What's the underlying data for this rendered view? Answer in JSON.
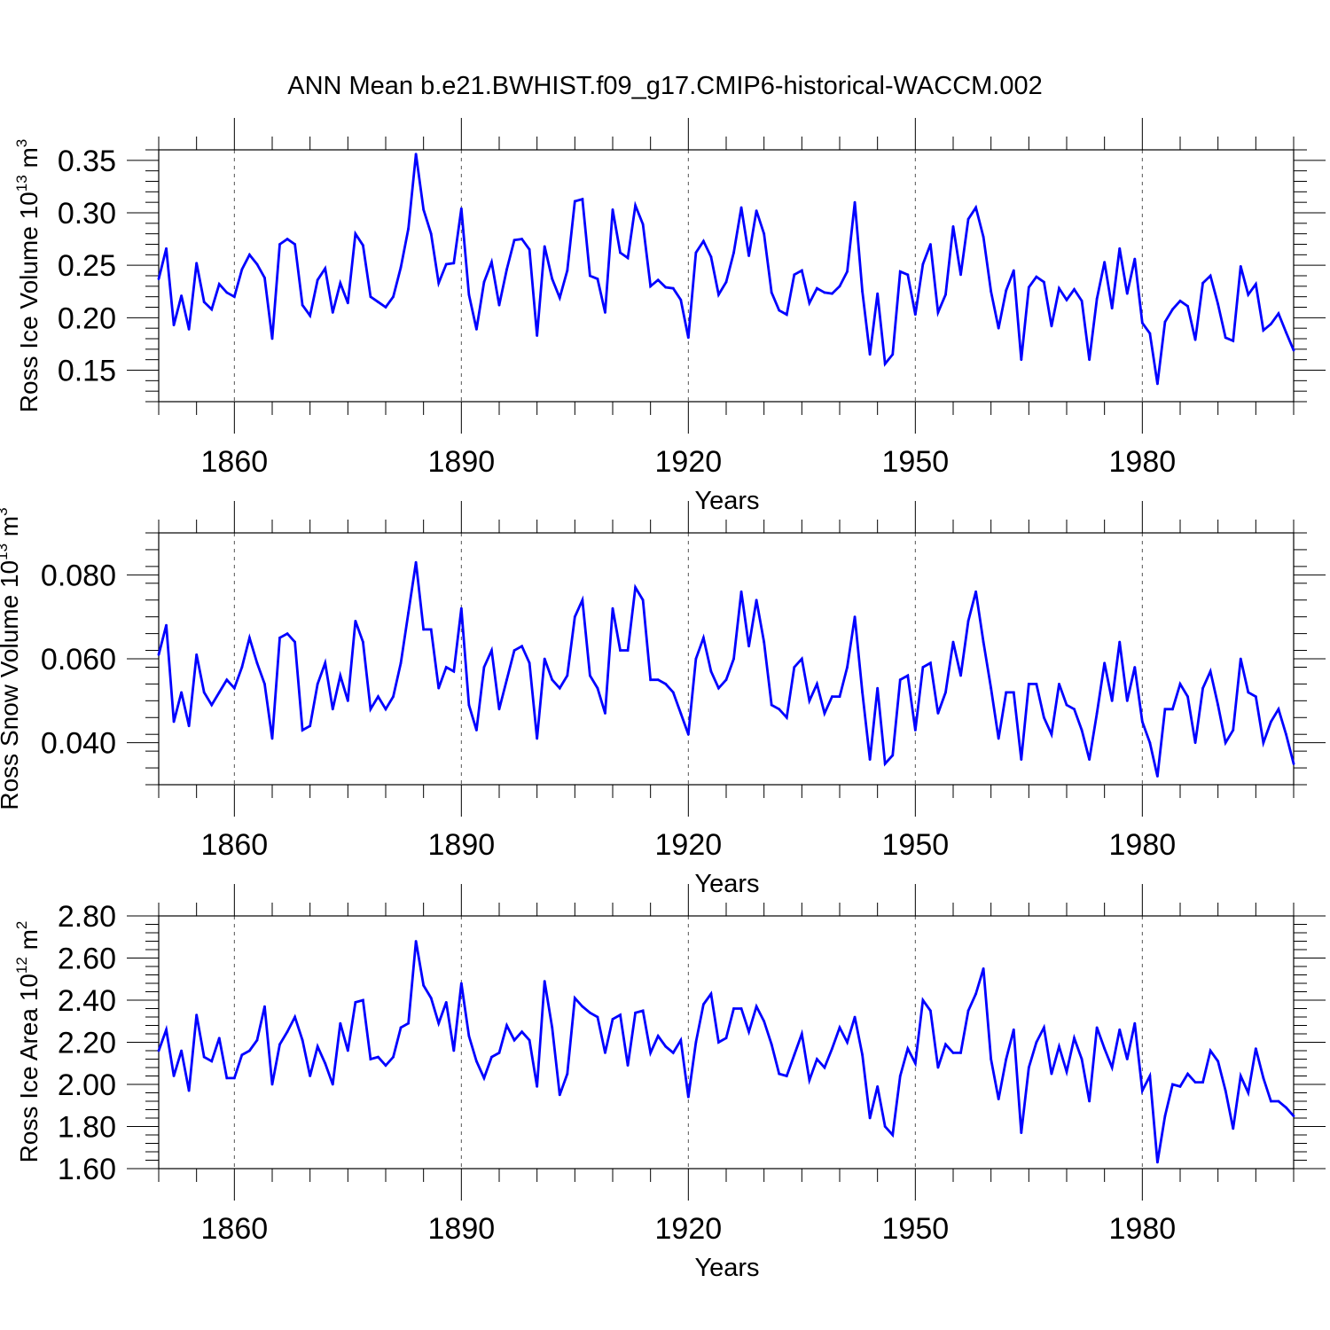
{
  "title": "ANN Mean b.e21.BWHIST.f09_g17.CMIP6-historical-WACCM.002",
  "colors": {
    "series": "#0000ff",
    "axis": "#000000",
    "grid": "#555555"
  },
  "chart_data": [
    {
      "type": "line",
      "ylabel": "Ross Ice Volume",
      "unit": {
        "scale": "10",
        "exp": "13",
        "sym": "m",
        "pow": "3"
      },
      "xlabel": "Years",
      "xlim": [
        1850,
        2000
      ],
      "ylim": [
        0.12,
        0.36
      ],
      "xticks": [
        1860,
        1890,
        1920,
        1950,
        1980
      ],
      "xtick_labels": [
        "1860",
        "1890",
        "1920",
        "1950",
        "1980"
      ],
      "yticks": [
        0.15,
        0.2,
        0.25,
        0.3,
        0.35
      ],
      "ytick_labels": [
        "0.15",
        "0.20",
        "0.25",
        "0.30",
        "0.35"
      ],
      "grid": "vertical dashed at x ticks",
      "x": [
        1850,
        1851,
        1852,
        1853,
        1854,
        1855,
        1856,
        1857,
        1858,
        1859,
        1860,
        1861,
        1862,
        1863,
        1864,
        1865,
        1866,
        1867,
        1868,
        1869,
        1870,
        1871,
        1872,
        1873,
        1874,
        1875,
        1876,
        1877,
        1878,
        1879,
        1880,
        1881,
        1882,
        1883,
        1884,
        1885,
        1886,
        1887,
        1888,
        1889,
        1890,
        1891,
        1892,
        1893,
        1894,
        1895,
        1896,
        1897,
        1898,
        1899,
        1900,
        1901,
        1902,
        1903,
        1904,
        1905,
        1906,
        1907,
        1908,
        1909,
        1910,
        1911,
        1912,
        1913,
        1914,
        1915,
        1916,
        1917,
        1918,
        1919,
        1920,
        1921,
        1922,
        1923,
        1924,
        1925,
        1926,
        1927,
        1928,
        1929,
        1930,
        1931,
        1932,
        1933,
        1934,
        1935,
        1936,
        1937,
        1938,
        1939,
        1940,
        1941,
        1942,
        1943,
        1944,
        1945,
        1946,
        1947,
        1948,
        1949,
        1950,
        1951,
        1952,
        1953,
        1954,
        1955,
        1956,
        1957,
        1958,
        1959,
        1960,
        1961,
        1962,
        1963,
        1964,
        1965,
        1966,
        1967,
        1968,
        1969,
        1970,
        1971,
        1972,
        1973,
        1974,
        1975,
        1976,
        1977,
        1978,
        1979,
        1980,
        1981,
        1982,
        1983,
        1984,
        1985,
        1986,
        1987,
        1988,
        1989,
        1990,
        1991,
        1992,
        1993,
        1994,
        1995,
        1996,
        1997,
        1998,
        1999,
        2000
      ],
      "series": [
        {
          "name": "Ross Ice Volume",
          "values": [
            0.237,
            0.266,
            0.193,
            0.221,
            0.189,
            0.252,
            0.215,
            0.208,
            0.232,
            0.224,
            0.22,
            0.246,
            0.26,
            0.251,
            0.238,
            0.18,
            0.27,
            0.275,
            0.27,
            0.212,
            0.202,
            0.236,
            0.247,
            0.205,
            0.233,
            0.214,
            0.28,
            0.269,
            0.22,
            0.215,
            0.21,
            0.22,
            0.248,
            0.285,
            0.356,
            0.303,
            0.28,
            0.233,
            0.251,
            0.252,
            0.304,
            0.222,
            0.189,
            0.234,
            0.253,
            0.212,
            0.246,
            0.274,
            0.275,
            0.265,
            0.183,
            0.268,
            0.237,
            0.219,
            0.245,
            0.311,
            0.313,
            0.24,
            0.237,
            0.205,
            0.303,
            0.262,
            0.257,
            0.307,
            0.289,
            0.23,
            0.236,
            0.229,
            0.228,
            0.217,
            0.181,
            0.262,
            0.273,
            0.258,
            0.222,
            0.234,
            0.262,
            0.305,
            0.259,
            0.302,
            0.28,
            0.224,
            0.207,
            0.203,
            0.241,
            0.245,
            0.214,
            0.228,
            0.224,
            0.223,
            0.23,
            0.244,
            0.31,
            0.225,
            0.165,
            0.223,
            0.156,
            0.165,
            0.244,
            0.241,
            0.203,
            0.251,
            0.27,
            0.205,
            0.222,
            0.287,
            0.241,
            0.294,
            0.305,
            0.277,
            0.225,
            0.19,
            0.226,
            0.245,
            0.16,
            0.229,
            0.239,
            0.234,
            0.192,
            0.228,
            0.217,
            0.227,
            0.216,
            0.16,
            0.218,
            0.253,
            0.209,
            0.266,
            0.223,
            0.256,
            0.195,
            0.185,
            0.137,
            0.196,
            0.208,
            0.216,
            0.211,
            0.179,
            0.233,
            0.24,
            0.213,
            0.181,
            0.178,
            0.249,
            0.222,
            0.232,
            0.188,
            0.194,
            0.204,
            0.186,
            0.169
          ]
        }
      ]
    },
    {
      "type": "line",
      "ylabel": "Ross Snow Volume",
      "unit": {
        "scale": "10",
        "exp": "13",
        "sym": "m",
        "pow": "3"
      },
      "xlabel": "Years",
      "xlim": [
        1850,
        2000
      ],
      "ylim": [
        0.03,
        0.09
      ],
      "xticks": [
        1860,
        1890,
        1920,
        1950,
        1980
      ],
      "xtick_labels": [
        "1860",
        "1890",
        "1920",
        "1950",
        "1980"
      ],
      "yticks": [
        0.04,
        0.06,
        0.08
      ],
      "ytick_labels": [
        "0.040",
        "0.060",
        "0.080"
      ],
      "grid": "vertical dashed at x ticks",
      "x": [
        1850,
        1851,
        1852,
        1853,
        1854,
        1855,
        1856,
        1857,
        1858,
        1859,
        1860,
        1861,
        1862,
        1863,
        1864,
        1865,
        1866,
        1867,
        1868,
        1869,
        1870,
        1871,
        1872,
        1873,
        1874,
        1875,
        1876,
        1877,
        1878,
        1879,
        1880,
        1881,
        1882,
        1883,
        1884,
        1885,
        1886,
        1887,
        1888,
        1889,
        1890,
        1891,
        1892,
        1893,
        1894,
        1895,
        1896,
        1897,
        1898,
        1899,
        1900,
        1901,
        1902,
        1903,
        1904,
        1905,
        1906,
        1907,
        1908,
        1909,
        1910,
        1911,
        1912,
        1913,
        1914,
        1915,
        1916,
        1917,
        1918,
        1919,
        1920,
        1921,
        1922,
        1923,
        1924,
        1925,
        1926,
        1927,
        1928,
        1929,
        1930,
        1931,
        1932,
        1933,
        1934,
        1935,
        1936,
        1937,
        1938,
        1939,
        1940,
        1941,
        1942,
        1943,
        1944,
        1945,
        1946,
        1947,
        1948,
        1949,
        1950,
        1951,
        1952,
        1953,
        1954,
        1955,
        1956,
        1957,
        1958,
        1959,
        1960,
        1961,
        1962,
        1963,
        1964,
        1965,
        1966,
        1967,
        1968,
        1969,
        1970,
        1971,
        1972,
        1973,
        1974,
        1975,
        1976,
        1977,
        1978,
        1979,
        1980,
        1981,
        1982,
        1983,
        1984,
        1985,
        1986,
        1987,
        1988,
        1989,
        1990,
        1991,
        1992,
        1993,
        1994,
        1995,
        1996,
        1997,
        1998,
        1999,
        2000
      ],
      "series": [
        {
          "name": "Ross Snow Volume",
          "values": [
            0.061,
            0.068,
            0.045,
            0.052,
            0.044,
            0.061,
            0.052,
            0.049,
            0.052,
            0.055,
            0.053,
            0.058,
            0.065,
            0.059,
            0.054,
            0.041,
            0.065,
            0.066,
            0.064,
            0.043,
            0.044,
            0.054,
            0.059,
            0.048,
            0.056,
            0.05,
            0.069,
            0.064,
            0.048,
            0.051,
            0.048,
            0.051,
            0.059,
            0.071,
            0.083,
            0.067,
            0.067,
            0.053,
            0.058,
            0.057,
            0.072,
            0.049,
            0.043,
            0.058,
            0.062,
            0.048,
            0.055,
            0.062,
            0.063,
            0.059,
            0.041,
            0.06,
            0.055,
            0.053,
            0.056,
            0.07,
            0.074,
            0.056,
            0.053,
            0.047,
            0.072,
            0.062,
            0.062,
            0.077,
            0.074,
            0.055,
            0.055,
            0.054,
            0.052,
            0.047,
            0.042,
            0.06,
            0.065,
            0.057,
            0.053,
            0.055,
            0.06,
            0.076,
            0.063,
            0.074,
            0.064,
            0.049,
            0.048,
            0.046,
            0.058,
            0.06,
            0.05,
            0.054,
            0.047,
            0.051,
            0.051,
            0.058,
            0.07,
            0.052,
            0.036,
            0.053,
            0.035,
            0.037,
            0.055,
            0.056,
            0.043,
            0.058,
            0.059,
            0.047,
            0.052,
            0.064,
            0.056,
            0.069,
            0.076,
            0.064,
            0.053,
            0.041,
            0.052,
            0.052,
            0.036,
            0.054,
            0.054,
            0.046,
            0.042,
            0.054,
            0.049,
            0.048,
            0.043,
            0.036,
            0.047,
            0.059,
            0.05,
            0.064,
            0.05,
            0.058,
            0.045,
            0.04,
            0.032,
            0.048,
            0.048,
            0.054,
            0.051,
            0.04,
            0.053,
            0.057,
            0.049,
            0.04,
            0.043,
            0.06,
            0.052,
            0.051,
            0.04,
            0.045,
            0.048,
            0.042,
            0.035
          ]
        }
      ]
    },
    {
      "type": "line",
      "ylabel": "Ross Ice Area",
      "unit": {
        "scale": "10",
        "exp": "12",
        "sym": "m",
        "pow": "2"
      },
      "xlabel": "Years",
      "xlim": [
        1850,
        2000
      ],
      "ylim": [
        1.6,
        2.8
      ],
      "xticks": [
        1860,
        1890,
        1920,
        1950,
        1980
      ],
      "xtick_labels": [
        "1860",
        "1890",
        "1920",
        "1950",
        "1980"
      ],
      "yticks": [
        1.6,
        1.8,
        2.0,
        2.2,
        2.4,
        2.6,
        2.8
      ],
      "ytick_labels": [
        "1.60",
        "1.80",
        "2.00",
        "2.20",
        "2.40",
        "2.60",
        "2.80"
      ],
      "grid": "vertical dashed at x ticks",
      "x": [
        1850,
        1851,
        1852,
        1853,
        1854,
        1855,
        1856,
        1857,
        1858,
        1859,
        1860,
        1861,
        1862,
        1863,
        1864,
        1865,
        1866,
        1867,
        1868,
        1869,
        1870,
        1871,
        1872,
        1873,
        1874,
        1875,
        1876,
        1877,
        1878,
        1879,
        1880,
        1881,
        1882,
        1883,
        1884,
        1885,
        1886,
        1887,
        1888,
        1889,
        1890,
        1891,
        1892,
        1893,
        1894,
        1895,
        1896,
        1897,
        1898,
        1899,
        1900,
        1901,
        1902,
        1903,
        1904,
        1905,
        1906,
        1907,
        1908,
        1909,
        1910,
        1911,
        1912,
        1913,
        1914,
        1915,
        1916,
        1917,
        1918,
        1919,
        1920,
        1921,
        1922,
        1923,
        1924,
        1925,
        1926,
        1927,
        1928,
        1929,
        1930,
        1931,
        1932,
        1933,
        1934,
        1935,
        1936,
        1937,
        1938,
        1939,
        1940,
        1941,
        1942,
        1943,
        1944,
        1945,
        1946,
        1947,
        1948,
        1949,
        1950,
        1951,
        1952,
        1953,
        1954,
        1955,
        1956,
        1957,
        1958,
        1959,
        1960,
        1961,
        1962,
        1963,
        1964,
        1965,
        1966,
        1967,
        1968,
        1969,
        1970,
        1971,
        1972,
        1973,
        1974,
        1975,
        1976,
        1977,
        1978,
        1979,
        1980,
        1981,
        1982,
        1983,
        1984,
        1985,
        1986,
        1987,
        1988,
        1989,
        1990,
        1991,
        1992,
        1993,
        1994,
        1995,
        1996,
        1997,
        1998,
        1999,
        2000
      ],
      "series": [
        {
          "name": "Ross Ice Area",
          "values": [
            2.16,
            2.26,
            2.04,
            2.16,
            1.97,
            2.33,
            2.13,
            2.11,
            2.22,
            2.03,
            2.03,
            2.14,
            2.16,
            2.21,
            2.37,
            2.0,
            2.19,
            2.25,
            2.32,
            2.21,
            2.04,
            2.18,
            2.1,
            2.0,
            2.29,
            2.16,
            2.39,
            2.4,
            2.12,
            2.13,
            2.09,
            2.13,
            2.27,
            2.29,
            2.68,
            2.47,
            2.41,
            2.29,
            2.39,
            2.16,
            2.48,
            2.23,
            2.11,
            2.03,
            2.13,
            2.15,
            2.28,
            2.21,
            2.25,
            2.21,
            1.99,
            2.49,
            2.27,
            1.95,
            2.05,
            2.41,
            2.37,
            2.34,
            2.32,
            2.15,
            2.31,
            2.33,
            2.09,
            2.34,
            2.35,
            2.15,
            2.23,
            2.18,
            2.15,
            2.21,
            1.94,
            2.2,
            2.38,
            2.43,
            2.2,
            2.22,
            2.36,
            2.36,
            2.25,
            2.37,
            2.3,
            2.19,
            2.05,
            2.04,
            2.14,
            2.24,
            2.02,
            2.12,
            2.08,
            2.17,
            2.27,
            2.2,
            2.32,
            2.14,
            1.84,
            1.99,
            1.8,
            1.76,
            2.04,
            2.17,
            2.1,
            2.4,
            2.35,
            2.08,
            2.19,
            2.15,
            2.15,
            2.35,
            2.43,
            2.55,
            2.12,
            1.93,
            2.12,
            2.26,
            1.77,
            2.08,
            2.2,
            2.27,
            2.05,
            2.18,
            2.06,
            2.22,
            2.12,
            1.92,
            2.27,
            2.17,
            2.08,
            2.26,
            2.12,
            2.29,
            1.97,
            2.04,
            1.63,
            1.85,
            2.0,
            1.99,
            2.05,
            2.01,
            2.01,
            2.16,
            2.11,
            1.97,
            1.79,
            2.04,
            1.96,
            2.17,
            2.03,
            1.92,
            1.92,
            1.89,
            1.85
          ]
        }
      ]
    }
  ]
}
